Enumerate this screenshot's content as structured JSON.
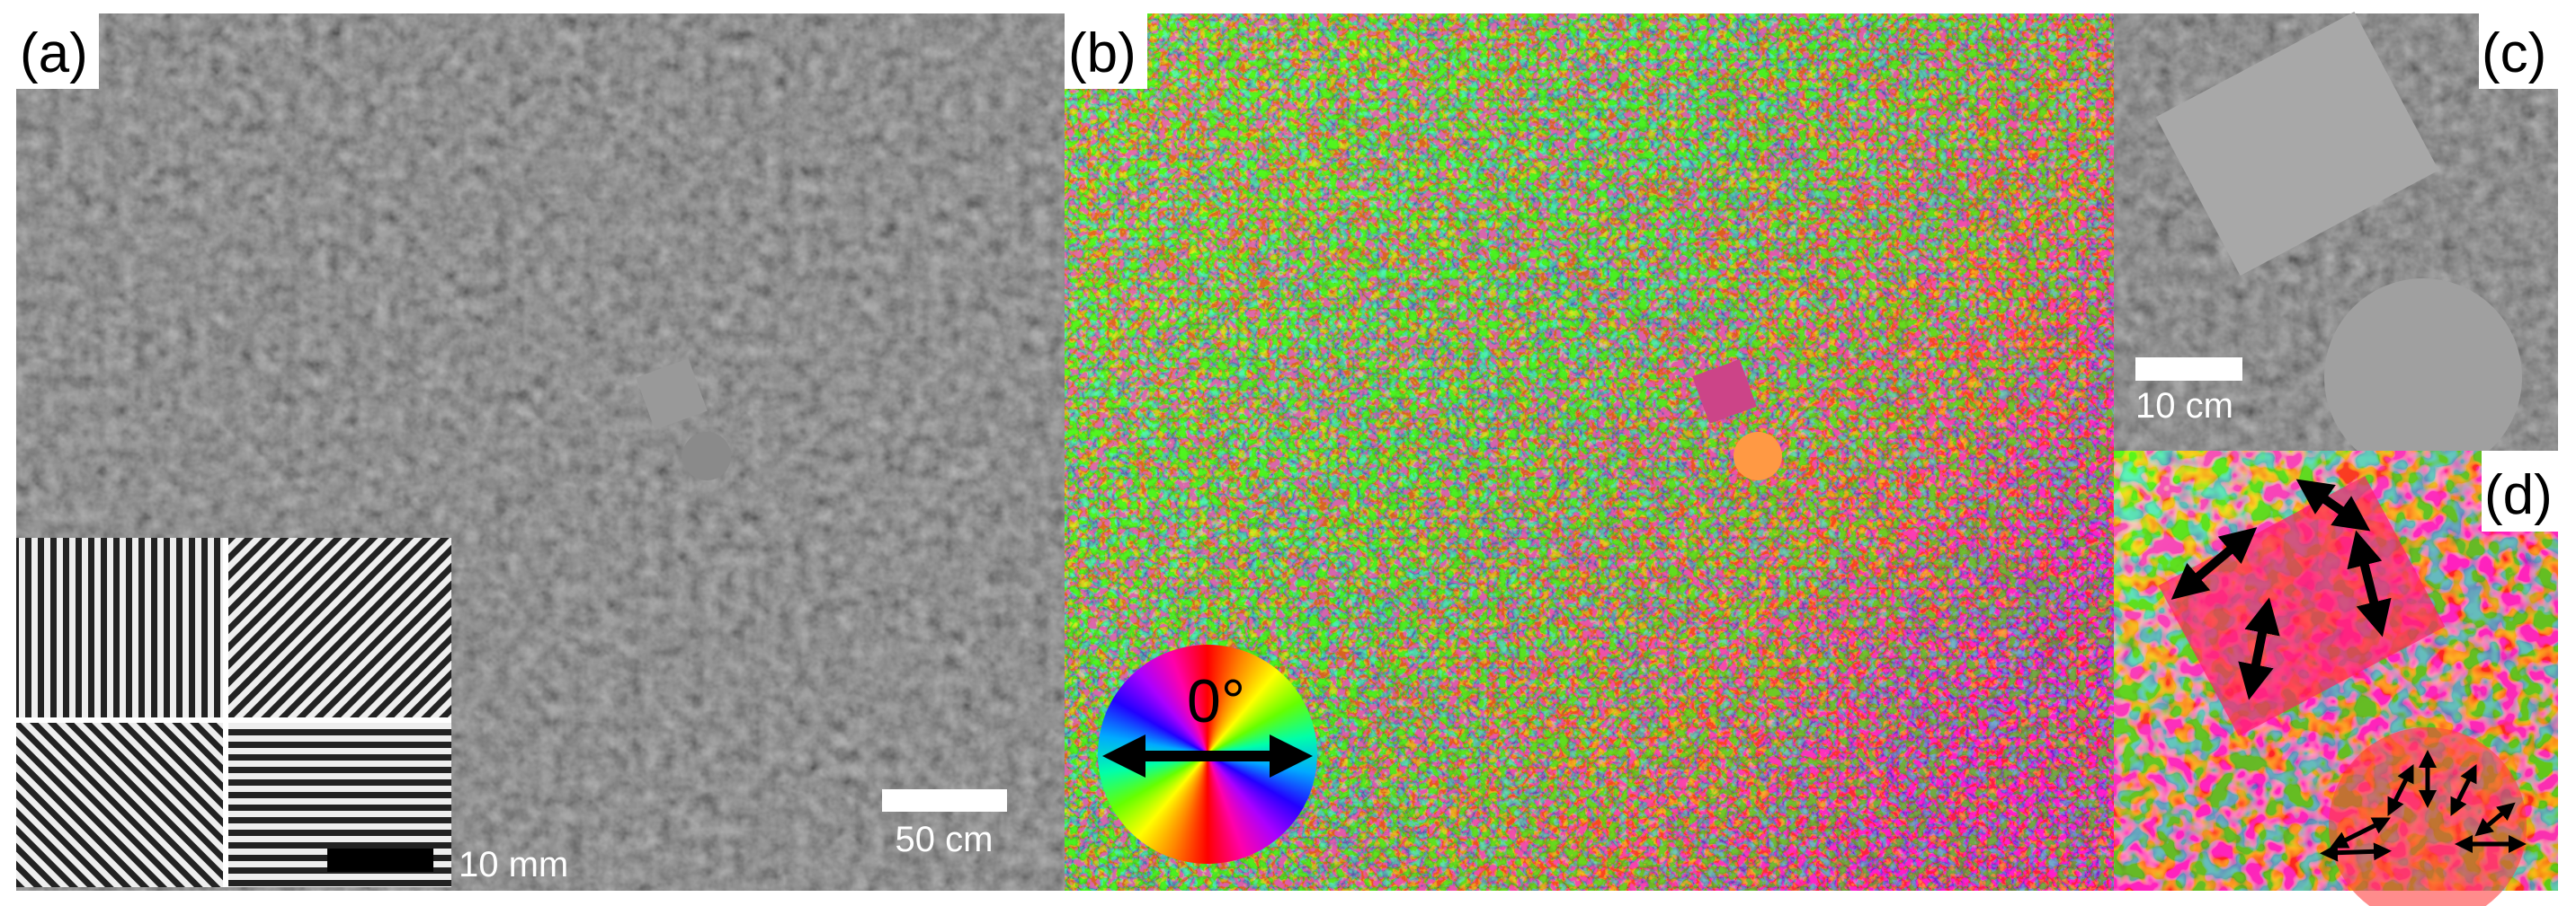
{
  "panels": [
    {
      "label": "(a)",
      "scale_bar": "50 cm",
      "inset_scale_bar": "10 mm"
    },
    {
      "label": "(b)",
      "color_wheel_label": "0°"
    },
    {
      "label": "(c)",
      "scale_bar": "10 cm"
    },
    {
      "label": "(d)"
    }
  ]
}
